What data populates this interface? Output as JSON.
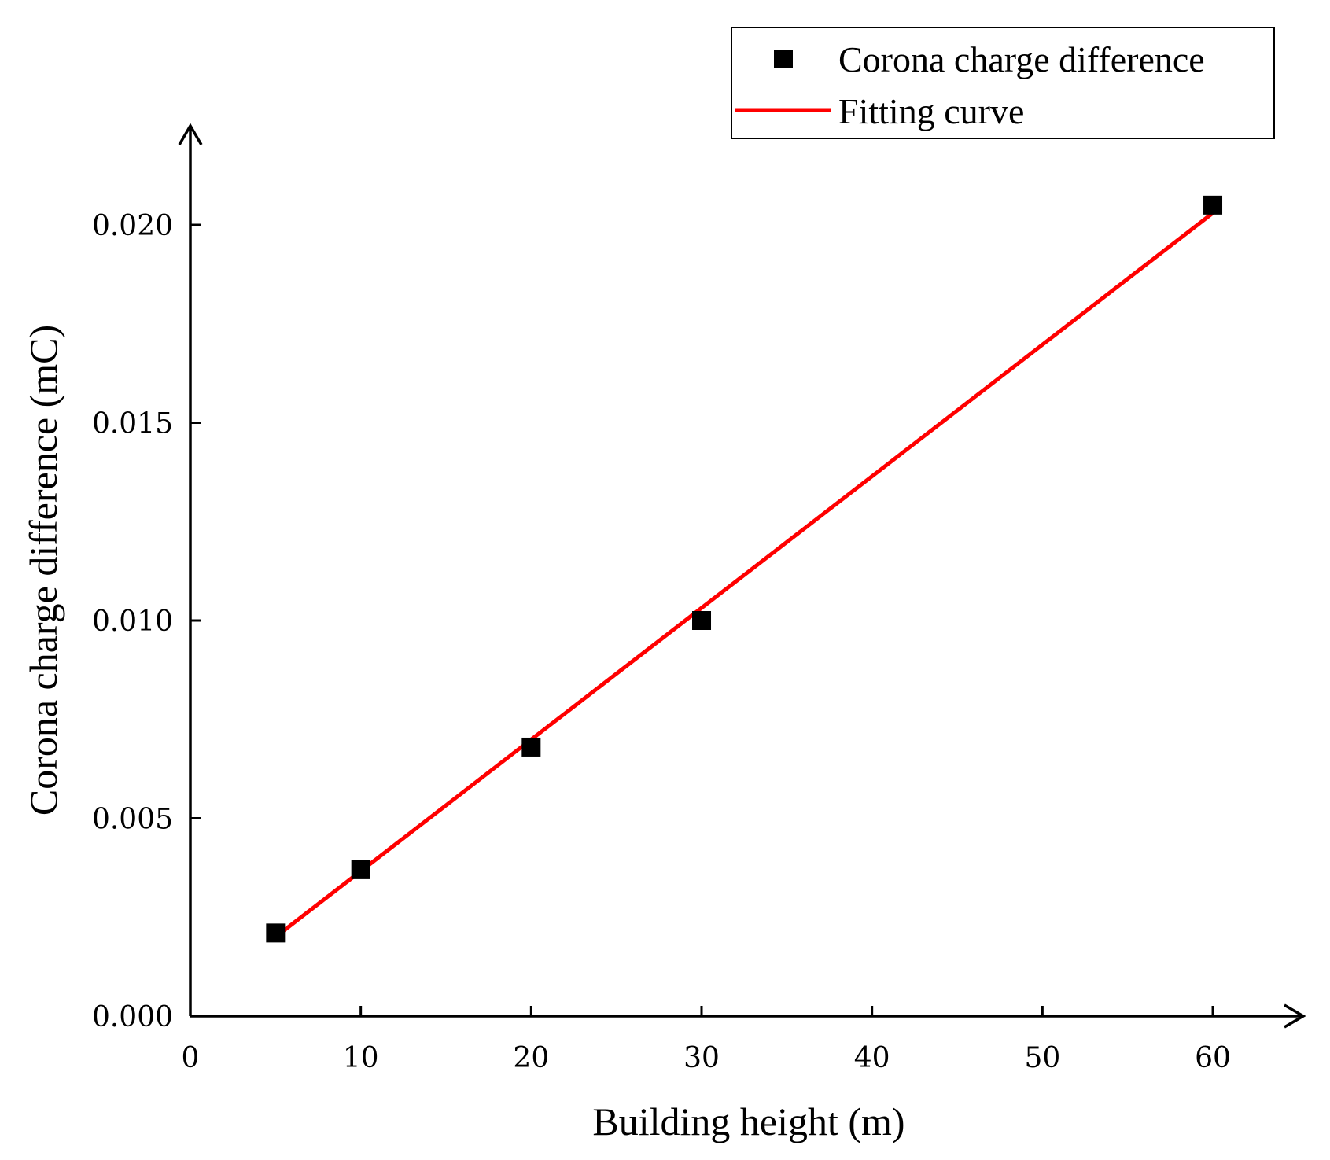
{
  "chart_data": {
    "type": "scatter",
    "title": "",
    "xlabel": "Building height (m)",
    "ylabel": "Corona charge difference (mC)",
    "xlim": [
      0,
      65
    ],
    "ylim": [
      0,
      0.022
    ],
    "xticks": [
      0,
      10,
      20,
      30,
      40,
      50,
      60
    ],
    "yticks": [
      0.0,
      0.005,
      0.01,
      0.015,
      0.02
    ],
    "xtick_labels": [
      "0",
      "10",
      "20",
      "30",
      "40",
      "50",
      "60"
    ],
    "ytick_labels": [
      "0.000",
      "0.005",
      "0.010",
      "0.015",
      "0.020"
    ],
    "grid": false,
    "legend_position": "top-right",
    "series": [
      {
        "name": "Corona charge difference",
        "kind": "scatter",
        "marker": "square",
        "color": "#000000",
        "x": [
          5,
          10,
          20,
          30,
          60
        ],
        "y": [
          0.0021,
          0.0037,
          0.0068,
          0.01,
          0.0205
        ]
      },
      {
        "name": "Fitting curve",
        "kind": "line",
        "color": "#ff0000",
        "x": [
          5,
          60
        ],
        "y": [
          0.002,
          0.0203
        ]
      }
    ]
  }
}
